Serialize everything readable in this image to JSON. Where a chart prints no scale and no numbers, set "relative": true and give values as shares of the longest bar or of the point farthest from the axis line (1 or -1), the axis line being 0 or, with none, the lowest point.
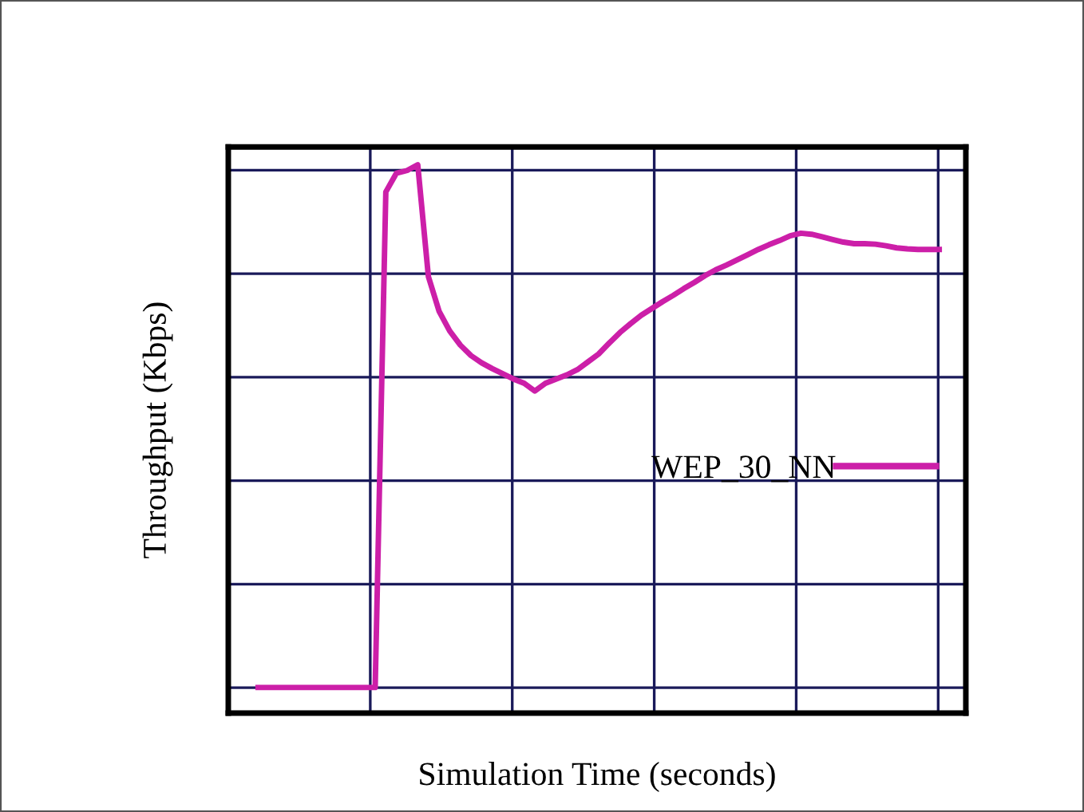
{
  "chart_data": {
    "type": "line",
    "xlabel": "Simulation Time (seconds)",
    "ylabel": "Throughput (Kbps)",
    "relative": true,
    "tick_labels": false,
    "grid": true,
    "legend": "right",
    "line_style": "solid",
    "marker": "none",
    "categories": [
      null,
      null,
      null,
      null,
      null,
      null,
      null,
      null,
      null,
      null,
      null,
      null,
      null,
      null,
      null,
      null,
      null,
      null,
      null,
      null,
      null,
      null,
      null,
      null,
      null,
      null,
      null,
      null,
      null,
      null,
      null,
      null,
      null,
      null,
      null,
      null,
      null,
      null,
      null,
      null,
      null,
      null,
      null,
      null,
      null,
      null,
      null,
      null,
      null,
      null,
      null,
      null,
      null,
      null,
      null,
      null,
      null,
      null,
      null,
      null,
      null,
      null,
      null,
      null,
      null
    ],
    "series": [
      {
        "name": "WEP_30_NN",
        "color": "#cc1fa8",
        "values": [
          0,
          0,
          0,
          0,
          0,
          0,
          0,
          0,
          0,
          0,
          0,
          0,
          0.948,
          0.984,
          0.989,
          1.0,
          0.786,
          0.72,
          0.682,
          0.655,
          0.635,
          0.621,
          0.61,
          0.6,
          0.59,
          0.582,
          0.567,
          0.582,
          0.59,
          0.598,
          0.608,
          0.623,
          0.638,
          0.659,
          0.679,
          0.696,
          0.712,
          0.725,
          0.738,
          0.75,
          0.763,
          0.775,
          0.788,
          0.799,
          0.808,
          0.818,
          0.828,
          0.838,
          0.847,
          0.855,
          0.864,
          0.869,
          0.867,
          0.862,
          0.857,
          0.852,
          0.849,
          0.849,
          0.848,
          0.845,
          0.841,
          0.839,
          0.838,
          0.838,
          0.838
        ]
      }
    ]
  }
}
